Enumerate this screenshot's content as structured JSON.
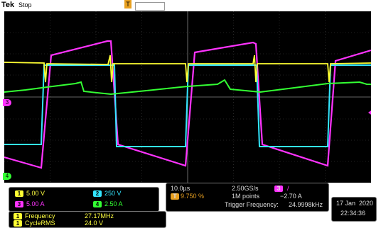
{
  "header": {
    "brand": "Tek",
    "run_state": "Stop",
    "trigger_marker": "T"
  },
  "colors": {
    "ch1": "#ffff33",
    "ch2": "#33e6ff",
    "ch3": "#ff33ff",
    "ch4": "#33ff33",
    "orange": "#e8a020"
  },
  "channels": [
    {
      "num": "1",
      "scale": "5.00 V"
    },
    {
      "num": "2",
      "scale": "250 V"
    },
    {
      "num": "3",
      "scale": "5.00 A"
    },
    {
      "num": "4",
      "scale": "2.50 A"
    }
  ],
  "horizontal": {
    "timebase": "10.0µs",
    "sample_rate": "2.50GS/s",
    "trigger_pos": "9.750 %",
    "trigger_pos_prefix": "T",
    "record": "1M points",
    "trigger_channel": "3",
    "trigger_slope": "/",
    "trigger_level": "−2.70 A",
    "trigger_freq_label": "Trigger Frequency:",
    "trigger_freq": "24.9998kHz"
  },
  "date": {
    "day": "17 Jan",
    "year": "2020",
    "time": "22:34:36"
  },
  "measurements": [
    {
      "channel": "1",
      "name": "Frequency",
      "value": "27.17MHz"
    },
    {
      "channel": "1",
      "name": "CycleRMS",
      "value": "24.0 V"
    }
  ],
  "ref_markers": {
    "ch3": "3",
    "ch4": "4"
  }
}
